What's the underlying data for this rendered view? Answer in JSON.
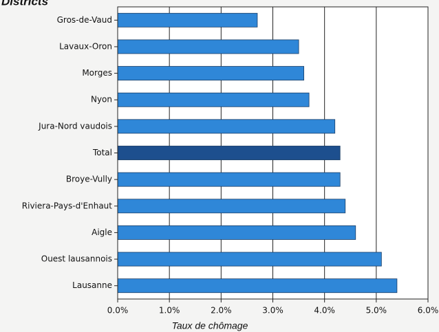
{
  "chart_data": {
    "type": "hbar",
    "title": "Districts",
    "x_label": "Taux de chômage",
    "categories": [
      "Gros-de-Vaud",
      "Lavaux-Oron",
      "Morges",
      "Nyon",
      "Jura-Nord vaudois",
      "Total",
      "Broye-Vully",
      "Riviera-Pays-d'Enhaut",
      "Aigle",
      "Ouest lausannois",
      "Lausanne"
    ],
    "values": [
      2.7,
      3.5,
      3.6,
      3.7,
      4.2,
      4.3,
      4.3,
      4.4,
      4.6,
      5.1,
      5.4
    ],
    "colors": [
      "#2f87d8",
      "#2f87d8",
      "#2f87d8",
      "#2f87d8",
      "#2f87d8",
      "#1d4f8e",
      "#2f87d8",
      "#2f87d8",
      "#2f87d8",
      "#2f87d8",
      "#2f87d8"
    ],
    "xlim": [
      0,
      6
    ],
    "xticks": [
      {
        "value": 0,
        "label": "0.0%"
      },
      {
        "value": 1,
        "label": "1.0%"
      },
      {
        "value": 2,
        "label": "2.0%"
      },
      {
        "value": 3,
        "label": "3.0%"
      },
      {
        "value": 4,
        "label": "4.0%"
      },
      {
        "value": 5,
        "label": "5.0%"
      },
      {
        "value": 6,
        "label": "6.0%"
      }
    ],
    "grid": true
  }
}
